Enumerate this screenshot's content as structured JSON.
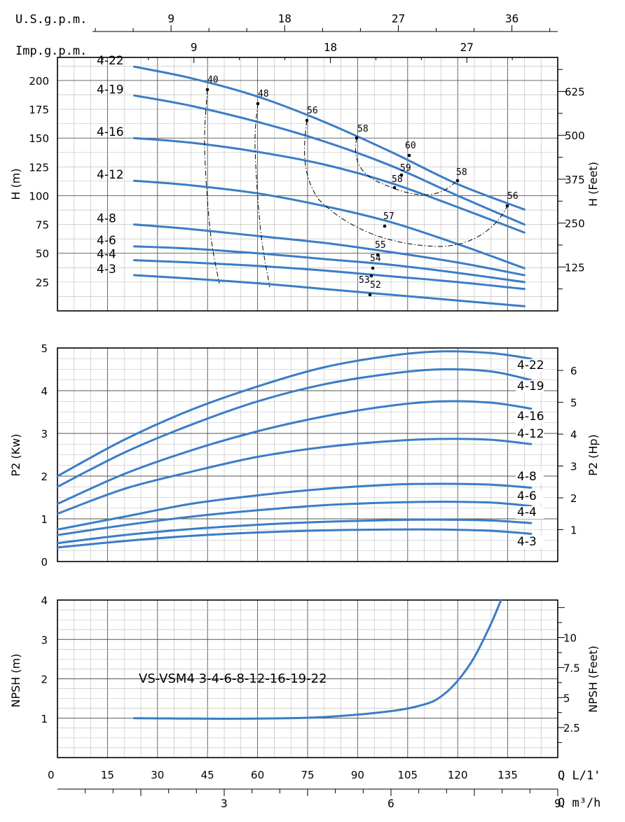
{
  "top_scales": {
    "usgpm": {
      "label": "U.S.g.p.m.",
      "ticks": [
        9,
        18,
        27,
        36
      ]
    },
    "impgpm": {
      "label": "Imp.g.p.m.",
      "ticks": [
        9,
        18,
        27
      ]
    }
  },
  "bottom_scales": {
    "q_lmin": {
      "label": "Q L/1'",
      "ticks": [
        0,
        15,
        30,
        45,
        60,
        75,
        90,
        105,
        120,
        135
      ]
    },
    "q_m3h": {
      "label": "Q m³/h",
      "ticks": [
        3,
        6,
        9
      ]
    }
  },
  "colors": {
    "curve": "#3a7dc7",
    "grid_major": "#555555",
    "grid_minor": "#b8b8b8",
    "frame": "#000000"
  },
  "chart_data": [
    {
      "type": "line",
      "panel": "head",
      "xlabel": "Q L/1'",
      "ylabel": "H (m)",
      "ylabel_right": "H (Feet)",
      "xlim": [
        0,
        150
      ],
      "ylim": [
        0,
        220
      ],
      "yticks": [
        25,
        50,
        75,
        100,
        125,
        150,
        175,
        200
      ],
      "yticks_right": [
        125,
        250,
        375,
        500,
        625
      ],
      "grid": true,
      "x": [
        23,
        40,
        60,
        80,
        100,
        120,
        140
      ],
      "series": [
        {
          "name": "4-22",
          "values": [
            212,
            202,
            186,
            164,
            138,
            110,
            88
          ]
        },
        {
          "name": "4-19",
          "values": [
            187,
            178,
            164,
            147,
            126,
            100,
            75
          ]
        },
        {
          "name": "4-16",
          "values": [
            150,
            146,
            138,
            127,
            111,
            90,
            68
          ]
        },
        {
          "name": "4-12",
          "values": [
            113,
            109,
            102,
            91,
            77,
            58,
            37
          ]
        },
        {
          "name": "4-8",
          "values": [
            75,
            71,
            65,
            59,
            51,
            42,
            31
          ]
        },
        {
          "name": "4-6",
          "values": [
            56,
            54,
            50,
            45,
            40,
            33,
            25
          ]
        },
        {
          "name": "4-4",
          "values": [
            44,
            42,
            39,
            35,
            30,
            25,
            19
          ]
        },
        {
          "name": "4-3",
          "values": [
            31,
            28,
            24,
            19,
            14,
            9,
            4
          ]
        }
      ],
      "efficiency_labels": [
        "40",
        "48",
        "56",
        "58",
        "60",
        "59",
        "58",
        "58",
        "56",
        "57",
        "55",
        "54",
        "53",
        "52"
      ]
    },
    {
      "type": "line",
      "panel": "power",
      "xlabel": "Q L/1'",
      "ylabel": "P2 (Kw)",
      "ylabel_right": "P2 (Hp)",
      "xlim": [
        0,
        150
      ],
      "ylim": [
        0,
        5
      ],
      "yticks": [
        0,
        1,
        2,
        3,
        4,
        5
      ],
      "yticks_right": [
        1,
        2,
        3,
        4,
        5,
        6
      ],
      "grid": true,
      "x": [
        0,
        20,
        40,
        60,
        80,
        100,
        115,
        130,
        142
      ],
      "series": [
        {
          "name": "4-22",
          "values": [
            2.0,
            2.85,
            3.55,
            4.1,
            4.55,
            4.82,
            4.92,
            4.88,
            4.75
          ]
        },
        {
          "name": "4-19",
          "values": [
            1.75,
            2.55,
            3.2,
            3.75,
            4.15,
            4.4,
            4.5,
            4.45,
            4.25
          ]
        },
        {
          "name": "4-16",
          "values": [
            1.35,
            2.05,
            2.6,
            3.05,
            3.4,
            3.65,
            3.75,
            3.72,
            3.58
          ]
        },
        {
          "name": "4-12",
          "values": [
            1.12,
            1.7,
            2.1,
            2.45,
            2.68,
            2.82,
            2.87,
            2.85,
            2.75
          ]
        },
        {
          "name": "4-8",
          "values": [
            0.75,
            1.05,
            1.35,
            1.55,
            1.7,
            1.8,
            1.82,
            1.8,
            1.73
          ]
        },
        {
          "name": "4-6",
          "values": [
            0.62,
            0.85,
            1.05,
            1.2,
            1.32,
            1.38,
            1.4,
            1.38,
            1.3
          ]
        },
        {
          "name": "4-4",
          "values": [
            0.43,
            0.62,
            0.76,
            0.86,
            0.93,
            0.97,
            0.98,
            0.96,
            0.9
          ]
        },
        {
          "name": "4-3",
          "values": [
            0.33,
            0.48,
            0.6,
            0.68,
            0.73,
            0.75,
            0.75,
            0.72,
            0.65
          ]
        }
      ]
    },
    {
      "type": "line",
      "panel": "npsh",
      "xlabel": "Q L/1'",
      "ylabel": "NPSH (m)",
      "ylabel_right": "NPSH (Feet)",
      "xlim": [
        0,
        150
      ],
      "ylim": [
        0,
        4
      ],
      "yticks": [
        1,
        2,
        3,
        4
      ],
      "yticks_right": [
        2.5,
        5,
        7.5,
        10
      ],
      "grid": true,
      "title": "VS-VSM4 3-4-6-8-12-16-19-22",
      "series": [
        {
          "name": "",
          "x": [
            23,
            40,
            60,
            80,
            100,
            110,
            115,
            120,
            125,
            130,
            133
          ],
          "values": [
            1.0,
            0.99,
            0.99,
            1.03,
            1.18,
            1.35,
            1.55,
            1.95,
            2.55,
            3.4,
            4.0
          ]
        }
      ]
    }
  ]
}
